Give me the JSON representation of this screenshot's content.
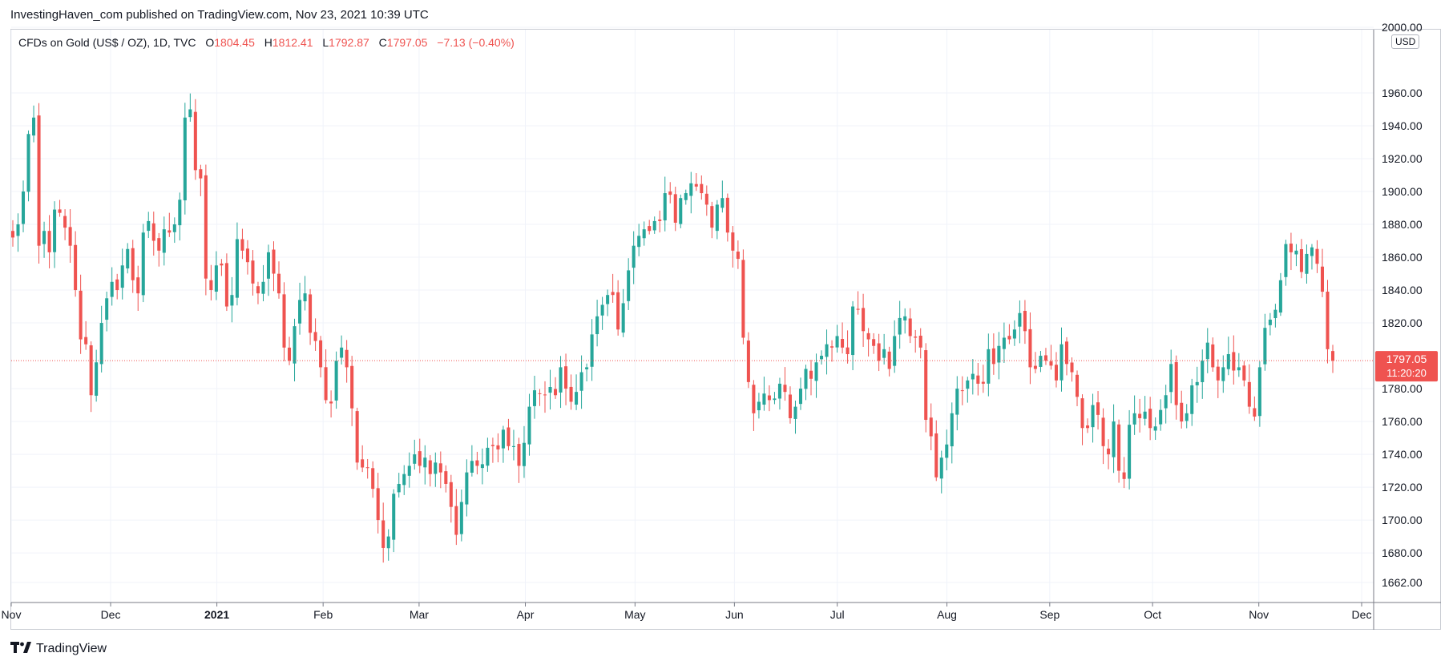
{
  "header": {
    "published": "InvestingHaven_com published on TradingView.com, Nov 23, 2021 10:39 UTC"
  },
  "legend": {
    "symbol": "CFDs on Gold (US$ / OZ), 1D, TVC",
    "o_label": "O",
    "o_value": "1804.45",
    "h_label": "H",
    "h_value": "1812.41",
    "l_label": "L",
    "l_value": "1792.87",
    "c_label": "C",
    "c_value": "1797.05",
    "change": "−7.13 (−0.40%)"
  },
  "price_axis": {
    "currency": "USD",
    "last_price": "1797.05",
    "countdown": "11:20:20"
  },
  "footer": {
    "brand": "TradingView"
  },
  "colors": {
    "up": "#26a69a",
    "down": "#ef5350",
    "grid": "#f0f3fa",
    "axis": "#131722"
  },
  "chart_data": {
    "type": "candlestick",
    "ylim": [
      1645,
      2000
    ],
    "y_ticks": [
      2000,
      1960,
      1940,
      1920,
      1900,
      1880,
      1860,
      1840,
      1820,
      1780,
      1760,
      1740,
      1720,
      1700,
      1680,
      1662
    ],
    "y_tick_labels": [
      "2000.00",
      "1960.00",
      "1940.00",
      "1920.00",
      "1900.00",
      "1880.00",
      "1860.00",
      "1840.00",
      "1820.00",
      "1780.00",
      "1760.00",
      "1740.00",
      "1720.00",
      "1700.00",
      "1680.00",
      "1662.00"
    ],
    "x_ticks": [
      {
        "label": "Nov",
        "date": "2020-11-02"
      },
      {
        "label": "Dec",
        "date": "2020-12-01"
      },
      {
        "label": "2021",
        "date": "2021-01-01"
      },
      {
        "label": "Feb",
        "date": "2021-02-01"
      },
      {
        "label": "Mar",
        "date": "2021-03-01"
      },
      {
        "label": "Apr",
        "date": "2021-04-01"
      },
      {
        "label": "May",
        "date": "2021-05-03"
      },
      {
        "label": "Jun",
        "date": "2021-06-01"
      },
      {
        "label": "Jul",
        "date": "2021-07-01"
      },
      {
        "label": "Aug",
        "date": "2021-08-02"
      },
      {
        "label": "Sep",
        "date": "2021-09-01"
      },
      {
        "label": "Oct",
        "date": "2021-10-01"
      },
      {
        "label": "Nov",
        "date": "2021-11-01"
      },
      {
        "label": "Dec",
        "date": "2021-12-01"
      }
    ],
    "last_price": 1797.05,
    "candles_note": "daily closes",
    "closes": [
      1872,
      1880,
      1900,
      1935,
      1945,
      1867,
      1876,
      1863,
      1889,
      1887,
      1878,
      1867,
      1840,
      1810,
      1807,
      1776,
      1796,
      1820,
      1835,
      1845,
      1840,
      1855,
      1865,
      1846,
      1838,
      1875,
      1882,
      1870,
      1864,
      1877,
      1875,
      1880,
      1895,
      1945,
      1950,
      1913,
      1908,
      1847,
      1840,
      1855,
      1855,
      1830,
      1837,
      1871,
      1864,
      1857,
      1844,
      1838,
      1845,
      1863,
      1850,
      1838,
      1805,
      1797,
      1818,
      1834,
      1838,
      1814,
      1809,
      1793,
      1773,
      1771,
      1797,
      1805,
      1793,
      1768,
      1735,
      1732,
      1732,
      1719,
      1700,
      1683,
      1690,
      1716,
      1722,
      1728,
      1733,
      1740,
      1733,
      1738,
      1728,
      1735,
      1729,
      1722,
      1708,
      1691,
      1711,
      1729,
      1736,
      1733,
      1734,
      1744,
      1745,
      1743,
      1755,
      1745,
      1745,
      1733,
      1747,
      1769,
      1779,
      1777,
      1776,
      1781,
      1776,
      1793,
      1780,
      1772,
      1778,
      1790,
      1793,
      1813,
      1824,
      1831,
      1837,
      1837,
      1816,
      1832,
      1852,
      1867,
      1873,
      1877,
      1876,
      1882,
      1882,
      1899,
      1898,
      1881,
      1896,
      1899,
      1905,
      1903,
      1899,
      1892,
      1878,
      1892,
      1896,
      1875,
      1864,
      1859,
      1811,
      1784,
      1765,
      1772,
      1777,
      1773,
      1774,
      1783,
      1778,
      1762,
      1769,
      1780,
      1792,
      1786,
      1796,
      1800,
      1807,
      1805,
      1812,
      1805,
      1801,
      1830,
      1828,
      1815,
      1810,
      1806,
      1797,
      1804,
      1792,
      1812,
      1823,
      1824,
      1812,
      1811,
      1805,
      1761,
      1751,
      1726,
      1738,
      1746,
      1765,
      1780,
      1779,
      1785,
      1789,
      1783,
      1783,
      1804,
      1795,
      1806,
      1811,
      1810,
      1816,
      1826,
      1815,
      1793,
      1792,
      1800,
      1797,
      1794,
      1785,
      1807,
      1795,
      1790,
      1775,
      1756,
      1756,
      1770,
      1764,
      1745,
      1740,
      1760,
      1730,
      1725,
      1758,
      1765,
      1762,
      1766,
      1756,
      1757,
      1767,
      1776,
      1795,
      1770,
      1760,
      1765,
      1782,
      1784,
      1797,
      1808,
      1793,
      1785,
      1793,
      1801,
      1791,
      1793,
      1785,
      1769,
      1763,
      1793,
      1817,
      1822,
      1828,
      1846,
      1868,
      1863,
      1864,
      1851,
      1862,
      1866,
      1856,
      1839,
      1804,
      1797
    ]
  }
}
